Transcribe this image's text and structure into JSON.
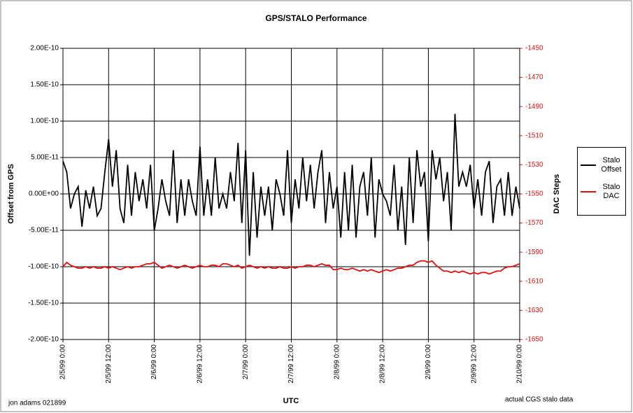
{
  "chart_data": {
    "type": "line",
    "title": "GPS/STALO Performance",
    "x_label": "UTC",
    "y_label": "Offset from GPS",
    "y2_label": "DAC Steps",
    "annotations": [
      "jon adams 021899",
      "actual CGS stalo data"
    ],
    "x": [
      "2/5/99 0:00",
      "2/5/99 1:00",
      "2/5/99 2:00",
      "2/5/99 3:00",
      "2/5/99 4:00",
      "2/5/99 5:00",
      "2/5/99 6:00",
      "2/5/99 7:00",
      "2/5/99 8:00",
      "2/5/99 9:00",
      "2/5/99 10:00",
      "2/5/99 11:00",
      "2/5/99 12:00",
      "2/5/99 13:00",
      "2/5/99 14:00",
      "2/5/99 15:00",
      "2/5/99 16:00",
      "2/5/99 17:00",
      "2/5/99 18:00",
      "2/5/99 19:00",
      "2/5/99 20:00",
      "2/5/99 21:00",
      "2/5/99 22:00",
      "2/5/99 23:00",
      "2/6/99 0:00",
      "2/6/99 1:00",
      "2/6/99 2:00",
      "2/6/99 3:00",
      "2/6/99 4:00",
      "2/6/99 5:00",
      "2/6/99 6:00",
      "2/6/99 7:00",
      "2/6/99 8:00",
      "2/6/99 9:00",
      "2/6/99 10:00",
      "2/6/99 11:00",
      "2/6/99 12:00",
      "2/6/99 13:00",
      "2/6/99 14:00",
      "2/6/99 15:00",
      "2/6/99 16:00",
      "2/6/99 17:00",
      "2/6/99 18:00",
      "2/6/99 19:00",
      "2/6/99 20:00",
      "2/6/99 21:00",
      "2/6/99 22:00",
      "2/6/99 23:00",
      "2/7/99 0:00",
      "2/7/99 1:00",
      "2/7/99 2:00",
      "2/7/99 3:00",
      "2/7/99 4:00",
      "2/7/99 5:00",
      "2/7/99 6:00",
      "2/7/99 7:00",
      "2/7/99 8:00",
      "2/7/99 9:00",
      "2/7/99 10:00",
      "2/7/99 11:00",
      "2/7/99 12:00",
      "2/7/99 13:00",
      "2/7/99 14:00",
      "2/7/99 15:00",
      "2/7/99 16:00",
      "2/7/99 17:00",
      "2/7/99 18:00",
      "2/7/99 19:00",
      "2/7/99 20:00",
      "2/7/99 21:00",
      "2/7/99 22:00",
      "2/7/99 23:00",
      "2/8/99 0:00",
      "2/8/99 1:00",
      "2/8/99 2:00",
      "2/8/99 3:00",
      "2/8/99 4:00",
      "2/8/99 5:00",
      "2/8/99 6:00",
      "2/8/99 7:00",
      "2/8/99 8:00",
      "2/8/99 9:00",
      "2/8/99 10:00",
      "2/8/99 11:00",
      "2/8/99 12:00",
      "2/8/99 13:00",
      "2/8/99 14:00",
      "2/8/99 15:00",
      "2/8/99 16:00",
      "2/8/99 17:00",
      "2/8/99 18:00",
      "2/8/99 19:00",
      "2/8/99 20:00",
      "2/8/99 21:00",
      "2/8/99 22:00",
      "2/8/99 23:00",
      "2/9/99 0:00",
      "2/9/99 1:00",
      "2/9/99 2:00",
      "2/9/99 3:00",
      "2/9/99 4:00",
      "2/9/99 5:00",
      "2/9/99 6:00",
      "2/9/99 7:00",
      "2/9/99 8:00",
      "2/9/99 9:00",
      "2/9/99 10:00",
      "2/9/99 11:00",
      "2/9/99 12:00",
      "2/9/99 13:00",
      "2/9/99 14:00",
      "2/9/99 15:00",
      "2/9/99 16:00",
      "2/9/99 17:00",
      "2/9/99 18:00",
      "2/9/99 19:00",
      "2/9/99 20:00",
      "2/9/99 21:00",
      "2/9/99 22:00",
      "2/9/99 23:00",
      "2/10/99 0:00"
    ],
    "series": [
      {
        "name": "Stalo Offset",
        "color": "#000000",
        "axis": "y",
        "values": [
          4.5e-11,
          3e-11,
          -2e-11,
          0,
          1e-11,
          -4.5e-11,
          5e-12,
          -2e-11,
          1e-11,
          -3e-11,
          -2e-11,
          3e-11,
          7.5e-11,
          1e-11,
          6e-11,
          -2e-11,
          -4e-11,
          4e-11,
          -3e-11,
          3e-11,
          -1e-11,
          2e-11,
          -2e-11,
          4e-11,
          -5e-11,
          -2e-11,
          2e-11,
          -1e-11,
          -3e-11,
          6e-11,
          -4e-11,
          2e-11,
          -3e-11,
          2e-11,
          -1e-11,
          -3e-11,
          6.5e-11,
          -3e-11,
          2e-11,
          -3e-11,
          5e-11,
          -2e-11,
          0,
          -2e-11,
          3e-11,
          -1e-11,
          7e-11,
          -4e-11,
          6e-11,
          -8.5e-11,
          3e-11,
          -6e-11,
          1e-11,
          -3e-11,
          1e-11,
          -5e-11,
          2e-11,
          0,
          -3e-11,
          6e-11,
          -4e-11,
          2e-11,
          -2e-11,
          5e-11,
          -1e-11,
          4e-11,
          -2e-11,
          3e-11,
          6e-11,
          -4e-11,
          3e-11,
          -2e-11,
          1e-11,
          -6e-11,
          3e-11,
          -5e-11,
          4e-11,
          -6e-11,
          1e-11,
          3e-11,
          -3e-11,
          5e-11,
          -6e-11,
          2e-11,
          0,
          -1e-11,
          -3e-11,
          4e-11,
          -5e-11,
          1e-11,
          -7e-11,
          5e-11,
          -4e-11,
          6e-11,
          1e-11,
          3e-11,
          -6.5e-11,
          6e-11,
          2e-11,
          5e-11,
          -1e-11,
          3e-11,
          -5e-11,
          1.1e-10,
          1e-11,
          3e-11,
          1e-11,
          4e-11,
          -2e-11,
          2e-11,
          -3e-11,
          3e-11,
          4.5e-11,
          -4e-11,
          1e-11,
          2e-11,
          -3e-11,
          3e-11,
          -3e-11,
          1e-11,
          -2e-11
        ]
      },
      {
        "name": "Stalo DAC",
        "color": "#e01010",
        "axis": "y2",
        "values": [
          -1600,
          -1597,
          -1599,
          -1600,
          -1601,
          -1601,
          -1600,
          -1601,
          -1600,
          -1601,
          -1601,
          -1600,
          -1601,
          -1600,
          -1601,
          -1602,
          -1601,
          -1600,
          -1601,
          -1600,
          -1600,
          -1599,
          -1598,
          -1598,
          -1597,
          -1599,
          -1601,
          -1600,
          -1599,
          -1600,
          -1601,
          -1600,
          -1599,
          -1600,
          -1601,
          -1600,
          -1599,
          -1600,
          -1600,
          -1599,
          -1599,
          -1600,
          -1598,
          -1598,
          -1599,
          -1600,
          -1599,
          -1601,
          -1600,
          -1599,
          -1600,
          -1601,
          -1600,
          -1601,
          -1600,
          -1601,
          -1601,
          -1600,
          -1601,
          -1601,
          -1600,
          -1601,
          -1600,
          -1600,
          -1599,
          -1599,
          -1600,
          -1599,
          -1598,
          -1599,
          -1599,
          -1602,
          -1602,
          -1601,
          -1602,
          -1602,
          -1601,
          -1602,
          -1603,
          -1602,
          -1603,
          -1602,
          -1603,
          -1604,
          -1603,
          -1602,
          -1603,
          -1602,
          -1601,
          -1601,
          -1600,
          -1599,
          -1599,
          -1597,
          -1596,
          -1596,
          -1597,
          -1596,
          -1599,
          -1601,
          -1603,
          -1603,
          -1604,
          -1603,
          -1604,
          -1603,
          -1604,
          -1605,
          -1604,
          -1605,
          -1604,
          -1604,
          -1605,
          -1604,
          -1603,
          -1603,
          -1601,
          -1600,
          -1600,
          -1599,
          -1598
        ]
      }
    ],
    "xlim": [
      "2/5/99 0:00",
      "2/10/99 0:00"
    ],
    "xticks": [
      "2/5/99 0:00",
      "2/5/99 12:00",
      "2/6/99 0:00",
      "2/6/99 12:00",
      "2/7/99 0:00",
      "2/7/99 12:00",
      "2/8/99 0:00",
      "2/8/99 12:00",
      "2/9/99 0:00",
      "2/9/99 12:00",
      "2/10/99 0:00"
    ],
    "ylim": [
      -2e-10,
      2e-10
    ],
    "yticks": [
      {
        "value": 2e-10,
        "label": "2.00E-10"
      },
      {
        "value": 1.5e-10,
        "label": "1.50E-10"
      },
      {
        "value": 1e-10,
        "label": "1.00E-10"
      },
      {
        "value": 5e-11,
        "label": "5.00E-11"
      },
      {
        "value": 0,
        "label": "0.00E+00"
      },
      {
        "value": -5e-11,
        "label": "-5.00E-11"
      },
      {
        "value": -1e-10,
        "label": "-1.00E-10"
      },
      {
        "value": -1.5e-10,
        "label": "-1.50E-10"
      },
      {
        "value": -2e-10,
        "label": "-2.00E-10"
      }
    ],
    "y2lim": [
      -1650,
      -1450
    ],
    "y2ticks": [
      -1450,
      -1470,
      -1490,
      -1510,
      -1530,
      -1550,
      -1570,
      -1590,
      -1610,
      -1630,
      -1650
    ],
    "y2_color": "#e01010",
    "grid": true,
    "legend": "right"
  }
}
